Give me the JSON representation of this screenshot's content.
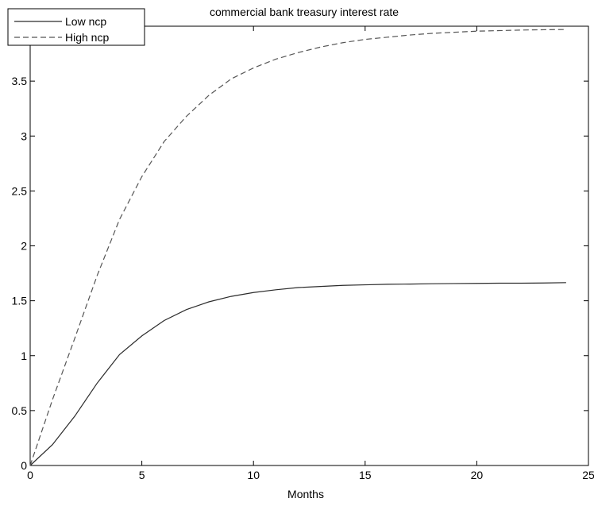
{
  "chart_data": {
    "type": "line",
    "title": "commercial bank treasury interest rate",
    "xlabel": "Months",
    "ylabel": "",
    "xlim": [
      0,
      25
    ],
    "ylim": [
      0,
      4
    ],
    "xticks": [
      0,
      5,
      10,
      15,
      20,
      25
    ],
    "yticks": [
      0,
      0.5,
      1,
      1.5,
      2,
      2.5,
      3,
      3.5,
      4
    ],
    "xtick_labels": [
      "0",
      "5",
      "10",
      "15",
      "20",
      "25"
    ],
    "ytick_labels": [
      "0",
      "0.5",
      "1",
      "1.5",
      "2",
      "2.5",
      "3",
      "3.5",
      "4"
    ],
    "grid": false,
    "legend_position": "top-left",
    "series": [
      {
        "name": "Low ncp",
        "style": "solid",
        "color": "#2b2b2b",
        "x": [
          0,
          1,
          2,
          3,
          4,
          5,
          6,
          7,
          8,
          9,
          10,
          11,
          12,
          13,
          14,
          15,
          16,
          17,
          18,
          19,
          20,
          21,
          22,
          23,
          24
        ],
        "y": [
          0,
          0.19,
          0.45,
          0.75,
          1.01,
          1.18,
          1.32,
          1.42,
          1.49,
          1.54,
          1.575,
          1.6,
          1.62,
          1.63,
          1.64,
          1.645,
          1.65,
          1.652,
          1.655,
          1.657,
          1.658,
          1.66,
          1.66,
          1.662,
          1.665
        ]
      },
      {
        "name": "High ncp",
        "style": "dashed",
        "color": "#555555",
        "x": [
          0,
          1,
          2,
          3,
          4,
          5,
          6,
          7,
          8,
          9,
          10,
          11,
          12,
          13,
          14,
          15,
          16,
          17,
          18,
          19,
          20,
          21,
          22,
          23,
          24
        ],
        "y": [
          0,
          0.6,
          1.16,
          1.73,
          2.24,
          2.63,
          2.95,
          3.18,
          3.37,
          3.52,
          3.62,
          3.7,
          3.76,
          3.81,
          3.85,
          3.88,
          3.9,
          3.92,
          3.935,
          3.945,
          3.955,
          3.96,
          3.965,
          3.968,
          3.97
        ]
      }
    ]
  }
}
